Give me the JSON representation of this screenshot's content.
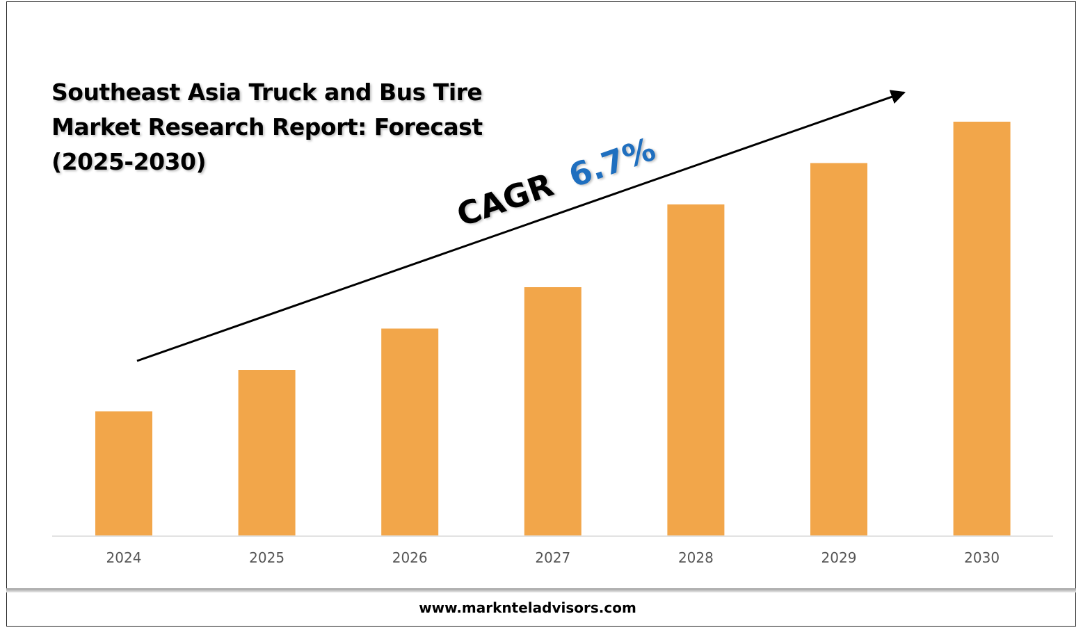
{
  "chart_data": {
    "type": "bar",
    "title": "Southeast Asia Truck and Bus Tire Market Research Report: Forecast (2025-2030)",
    "categories": [
      "2024",
      "2025",
      "2026",
      "2027",
      "2028",
      "2029",
      "2030"
    ],
    "values": [
      30,
      40,
      50,
      60,
      80,
      90,
      100
    ],
    "ylim": [
      0,
      100
    ],
    "xlabel": "",
    "ylabel": "",
    "grid": false,
    "bar_color": "#F2A64A",
    "annotation": {
      "label": "CAGR",
      "value": "6.7%",
      "label_color": "#000000",
      "value_color": "#1F6FBF"
    }
  },
  "footer": {
    "url": "www.marknteladvisors.com"
  }
}
